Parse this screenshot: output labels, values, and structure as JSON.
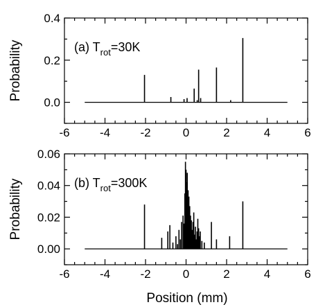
{
  "chart_data": [
    {
      "type": "line",
      "panel_label": "(a) T",
      "panel_label_subscript": "rot",
      "panel_label_suffix": "=30K",
      "ylabel": "Probability",
      "xlabel": "",
      "xlim": [
        -6,
        6
      ],
      "ylim": [
        -0.1,
        0.4
      ],
      "x_ticks": [
        -6,
        -4,
        -2,
        0,
        2,
        4,
        6
      ],
      "y_ticks": [
        0.0,
        0.2,
        0.4
      ],
      "x_tick_labels": [
        "-6",
        "-4",
        "-2",
        "0",
        "2",
        "4",
        "6"
      ],
      "y_tick_labels": [
        "0.0",
        "0.2",
        "0.4"
      ],
      "baseline": {
        "x_range": [
          -5,
          5
        ],
        "y": 0
      },
      "series": [
        {
          "peaks": [
            {
              "x": -2.05,
              "y": 0.13
            },
            {
              "x": -0.75,
              "y": 0.025
            },
            {
              "x": -0.1,
              "y": 0.015
            },
            {
              "x": 0.05,
              "y": 0.02
            },
            {
              "x": 0.4,
              "y": 0.065
            },
            {
              "x": 0.55,
              "y": 0.01
            },
            {
              "x": 0.62,
              "y": 0.155
            },
            {
              "x": 0.72,
              "y": 0.02
            },
            {
              "x": 1.5,
              "y": 0.165
            },
            {
              "x": 2.2,
              "y": 0.01
            },
            {
              "x": 2.8,
              "y": 0.305
            }
          ]
        }
      ]
    },
    {
      "type": "line",
      "panel_label": "(b) T",
      "panel_label_subscript": "rot",
      "panel_label_suffix": "=300K",
      "ylabel": "Probability",
      "xlabel": "Position (mm)",
      "xlim": [
        -6,
        6
      ],
      "ylim": [
        -0.01,
        0.06
      ],
      "x_ticks": [
        -6,
        -4,
        -2,
        0,
        2,
        4,
        6
      ],
      "y_ticks": [
        0.0,
        0.02,
        0.04,
        0.06
      ],
      "x_tick_labels": [
        "-6",
        "-4",
        "-2",
        "0",
        "2",
        "4",
        "6"
      ],
      "y_tick_labels": [
        "0.00",
        "0.02",
        "0.04",
        "0.06"
      ],
      "baseline": {
        "x_range": [
          -5,
          5
        ],
        "y": 0
      },
      "series": [
        {
          "peaks": [
            {
              "x": -2.05,
              "y": 0.028
            },
            {
              "x": -1.2,
              "y": 0.007
            },
            {
              "x": -0.9,
              "y": 0.011
            },
            {
              "x": -0.8,
              "y": 0.015
            },
            {
              "x": -0.65,
              "y": 0.004
            },
            {
              "x": -0.5,
              "y": 0.008
            },
            {
              "x": -0.42,
              "y": 0.003
            },
            {
              "x": -0.35,
              "y": 0.012
            },
            {
              "x": -0.28,
              "y": 0.006
            },
            {
              "x": -0.22,
              "y": 0.017
            },
            {
              "x": -0.15,
              "y": 0.021
            },
            {
              "x": -0.1,
              "y": 0.016
            },
            {
              "x": -0.06,
              "y": 0.035
            },
            {
              "x": -0.03,
              "y": 0.055
            },
            {
              "x": 0.0,
              "y": 0.05
            },
            {
              "x": 0.03,
              "y": 0.042
            },
            {
              "x": 0.06,
              "y": 0.048
            },
            {
              "x": 0.1,
              "y": 0.037
            },
            {
              "x": 0.14,
              "y": 0.033
            },
            {
              "x": 0.18,
              "y": 0.027
            },
            {
              "x": 0.22,
              "y": 0.021
            },
            {
              "x": 0.26,
              "y": 0.018
            },
            {
              "x": 0.3,
              "y": 0.012
            },
            {
              "x": 0.34,
              "y": 0.017
            },
            {
              "x": 0.38,
              "y": 0.023
            },
            {
              "x": 0.42,
              "y": 0.009
            },
            {
              "x": 0.46,
              "y": 0.014
            },
            {
              "x": 0.5,
              "y": 0.006
            },
            {
              "x": 0.54,
              "y": 0.011
            },
            {
              "x": 0.58,
              "y": 0.019
            },
            {
              "x": 0.62,
              "y": 0.013
            },
            {
              "x": 0.66,
              "y": 0.008
            },
            {
              "x": 0.7,
              "y": 0.011
            },
            {
              "x": 0.78,
              "y": 0.005
            },
            {
              "x": 0.9,
              "y": 0.004
            },
            {
              "x": 1.25,
              "y": 0.017
            },
            {
              "x": 1.5,
              "y": 0.006
            },
            {
              "x": 2.15,
              "y": 0.008
            },
            {
              "x": 2.8,
              "y": 0.03
            }
          ]
        }
      ]
    }
  ]
}
